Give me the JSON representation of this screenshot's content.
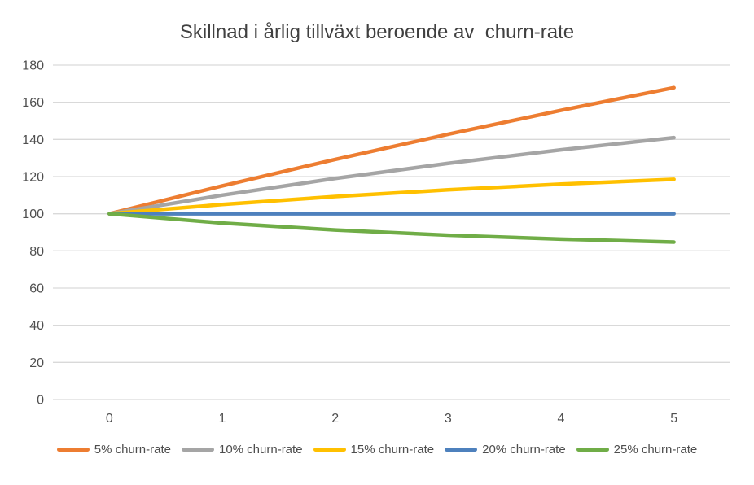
{
  "chart_data": {
    "type": "line",
    "title": "Skillnad i årlig tillväxt beroende av  churn-rate",
    "categories": [
      "0",
      "1",
      "2",
      "3",
      "4",
      "5"
    ],
    "series": [
      {
        "name": "5% churn-rate",
        "color": "#ED7D31",
        "values": [
          100,
          115,
          129.25,
          142.79,
          155.65,
          167.86
        ]
      },
      {
        "name": "10% churn-rate",
        "color": "#A5A5A5",
        "values": [
          100,
          110,
          119,
          127.1,
          134.39,
          140.95
        ]
      },
      {
        "name": "15% churn-rate",
        "color": "#FFC000",
        "values": [
          100,
          105,
          109.25,
          112.86,
          115.93,
          118.54
        ]
      },
      {
        "name": "20% churn-rate",
        "color": "#4E81BD",
        "values": [
          100,
          100,
          100,
          100,
          100,
          100
        ]
      },
      {
        "name": "25% churn-rate",
        "color": "#70AD47",
        "values": [
          100,
          95,
          91.25,
          88.44,
          86.33,
          84.75
        ]
      }
    ],
    "xlabel": "",
    "ylabel": "",
    "y_axis": {
      "min": 0,
      "max": 180,
      "tick_step": 20,
      "ticks": [
        0,
        20,
        40,
        60,
        80,
        100,
        120,
        140,
        160,
        180
      ]
    },
    "x_axis": {
      "labels": [
        "0",
        "1",
        "2",
        "3",
        "4",
        "5"
      ]
    },
    "ylim": [
      0,
      180
    ],
    "grid": "horizontal",
    "legend_position": "bottom",
    "colors": {
      "gridline": "#d9d9d9",
      "tick_label": "#4f4f4f",
      "title": "#404040",
      "background": "#ffffff",
      "frame_border": "#c9c9c9"
    }
  }
}
